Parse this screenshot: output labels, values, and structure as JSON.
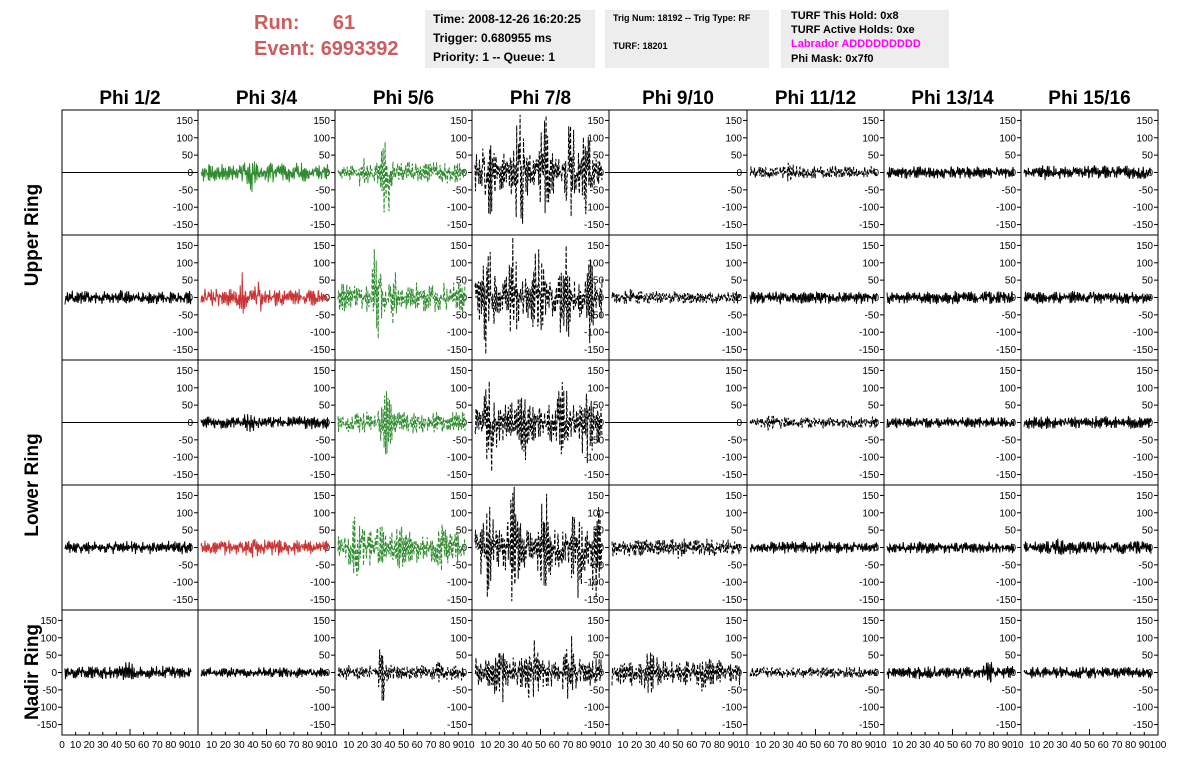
{
  "header": {
    "run_label": "Run:",
    "run_value": "61",
    "event_label": "Event:",
    "event_value": "6993392",
    "time_lines": [
      "Time: 2008-12-26 16:20:25",
      "Trigger: 0.680955 ms",
      "Priority: 1 -- Queue: 1"
    ],
    "trig_lines": [
      "Trig Num: 18192 -- Trig Type: RF",
      "TURF: 18201"
    ],
    "turf_lines": [
      "TURF This Hold: 0x8",
      "TURF Active Holds: 0xe",
      "Labrador ADDDDDDDDD",
      "Phi Mask: 0x7f0"
    ]
  },
  "colors": {
    "title": "#cd5c5c",
    "magenta": "#ff00ff",
    "green": "#2e8b2e",
    "red": "#cc3333",
    "black": "#000000",
    "box": "#ededed"
  },
  "chart_data": {
    "type": "line",
    "columns": [
      "Phi 1/2",
      "Phi 3/4",
      "Phi 5/6",
      "Phi 7/8",
      "Phi 9/10",
      "Phi 11/12",
      "Phi 13/14",
      "Phi 15/16"
    ],
    "rings": [
      "Upper Ring",
      "Lower Ring",
      "Nadir Ring"
    ],
    "ylim": [
      -180,
      180
    ],
    "xlim": [
      0,
      100
    ],
    "y_ticks": [
      -150,
      -100,
      -50,
      0,
      50,
      100,
      150
    ],
    "y_tick_labels": [
      "-150",
      "-100",
      "-50",
      "0",
      "50",
      "100",
      "150"
    ],
    "x_tick_labels": [
      [
        "0",
        "10",
        "20",
        "30",
        "40",
        "50",
        "60",
        "70",
        "80",
        "90",
        "10"
      ],
      [
        "10",
        "20",
        "30",
        "40",
        "50",
        "60",
        "70",
        "80",
        "90",
        "10"
      ],
      [
        "10",
        "20",
        "30",
        "40",
        "50",
        "60",
        "70",
        "80",
        "90",
        "10"
      ],
      [
        "10",
        "20",
        "30",
        "40",
        "50",
        "60",
        "70",
        "80",
        "90",
        "10"
      ],
      [
        "10",
        "20",
        "30",
        "40",
        "50",
        "60",
        "70",
        "80",
        "90",
        "10"
      ],
      [
        "10",
        "20",
        "30",
        "40",
        "50",
        "60",
        "70",
        "80",
        "90",
        "10"
      ],
      [
        "10",
        "20",
        "30",
        "40",
        "50",
        "60",
        "70",
        "80",
        "90",
        "10"
      ],
      [
        "10",
        "20",
        "30",
        "40",
        "50",
        "60",
        "70",
        "80",
        "90",
        "100"
      ]
    ],
    "panels": [
      {
        "row": 0,
        "col": 0,
        "style": "flat",
        "color": "black",
        "amp": 0,
        "peaks": []
      },
      {
        "row": 0,
        "col": 1,
        "style": "solid",
        "color": "green",
        "amp": 22,
        "peaks": [
          [
            40,
            2
          ]
        ]
      },
      {
        "row": 0,
        "col": 2,
        "style": "dash",
        "color": "green",
        "amp": 25,
        "peaks": [
          [
            38,
            5
          ],
          [
            20,
            1.6
          ]
        ]
      },
      {
        "row": 0,
        "col": 3,
        "style": "dash",
        "color": "black",
        "amp": 45,
        "peaks": [
          [
            10,
            3
          ],
          [
            35,
            3.3
          ],
          [
            55,
            3
          ],
          [
            75,
            3
          ],
          [
            88,
            2.5
          ]
        ]
      },
      {
        "row": 0,
        "col": 4,
        "style": "flat",
        "color": "black",
        "amp": 0,
        "peaks": []
      },
      {
        "row": 0,
        "col": 5,
        "style": "dash",
        "color": "black",
        "amp": 15,
        "peaks": [
          [
            30,
            1.6
          ],
          [
            70,
            1.4
          ]
        ]
      },
      {
        "row": 0,
        "col": 6,
        "style": "solid",
        "color": "black",
        "amp": 14,
        "peaks": []
      },
      {
        "row": 0,
        "col": 7,
        "style": "solid",
        "color": "black",
        "amp": 16,
        "peaks": [
          [
            20,
            1.5
          ]
        ]
      },
      {
        "row": 1,
        "col": 0,
        "style": "solid",
        "color": "black",
        "amp": 17,
        "peaks": []
      },
      {
        "row": 1,
        "col": 1,
        "style": "solid",
        "color": "red",
        "amp": 20,
        "peaks": [
          [
            32,
            3
          ],
          [
            45,
            2
          ]
        ]
      },
      {
        "row": 1,
        "col": 2,
        "style": "dash",
        "color": "green",
        "amp": 35,
        "peaks": [
          [
            30,
            4
          ],
          [
            45,
            2
          ]
        ]
      },
      {
        "row": 1,
        "col": 3,
        "style": "dash",
        "color": "black",
        "amp": 50,
        "peaks": [
          [
            10,
            3
          ],
          [
            30,
            2.8
          ],
          [
            50,
            2.6
          ],
          [
            70,
            2.8
          ],
          [
            90,
            2.4
          ]
        ]
      },
      {
        "row": 1,
        "col": 4,
        "style": "dash",
        "color": "black",
        "amp": 15,
        "peaks": [
          [
            15,
            1.5
          ]
        ]
      },
      {
        "row": 1,
        "col": 5,
        "style": "solid",
        "color": "black",
        "amp": 15,
        "peaks": []
      },
      {
        "row": 1,
        "col": 6,
        "style": "solid",
        "color": "black",
        "amp": 15,
        "peaks": []
      },
      {
        "row": 1,
        "col": 7,
        "style": "solid",
        "color": "black",
        "amp": 15,
        "peaks": []
      },
      {
        "row": 2,
        "col": 0,
        "style": "flat",
        "color": "black",
        "amp": 0,
        "peaks": []
      },
      {
        "row": 2,
        "col": 1,
        "style": "solid",
        "color": "black",
        "amp": 15,
        "peaks": [
          [
            38,
            1.6
          ]
        ]
      },
      {
        "row": 2,
        "col": 2,
        "style": "dash",
        "color": "green",
        "amp": 25,
        "peaks": [
          [
            38,
            3.5
          ]
        ]
      },
      {
        "row": 2,
        "col": 3,
        "style": "dash",
        "color": "black",
        "amp": 45,
        "peaks": [
          [
            12,
            2.8
          ],
          [
            38,
            2.2
          ],
          [
            70,
            2.6
          ],
          [
            88,
            2.4
          ]
        ]
      },
      {
        "row": 2,
        "col": 4,
        "style": "flat",
        "color": "black",
        "amp": 0,
        "peaks": []
      },
      {
        "row": 2,
        "col": 5,
        "style": "dash",
        "color": "black",
        "amp": 14,
        "peaks": [
          [
            15,
            1.5
          ]
        ]
      },
      {
        "row": 2,
        "col": 6,
        "style": "solid",
        "color": "black",
        "amp": 13,
        "peaks": []
      },
      {
        "row": 2,
        "col": 7,
        "style": "solid",
        "color": "black",
        "amp": 15,
        "peaks": []
      },
      {
        "row": 3,
        "col": 0,
        "style": "solid",
        "color": "black",
        "amp": 15,
        "peaks": []
      },
      {
        "row": 3,
        "col": 1,
        "style": "solid",
        "color": "red",
        "amp": 18,
        "peaks": [
          [
            40,
            1.8
          ]
        ]
      },
      {
        "row": 3,
        "col": 2,
        "style": "dash",
        "color": "green",
        "amp": 35,
        "peaks": [
          [
            15,
            3
          ],
          [
            30,
            3.3
          ],
          [
            50,
            2
          ],
          [
            80,
            2
          ]
        ]
      },
      {
        "row": 3,
        "col": 3,
        "style": "dash",
        "color": "black",
        "amp": 50,
        "peaks": [
          [
            10,
            2.6
          ],
          [
            30,
            3
          ],
          [
            55,
            2.6
          ],
          [
            80,
            3
          ],
          [
            95,
            2.6
          ]
        ]
      },
      {
        "row": 3,
        "col": 4,
        "style": "dash",
        "color": "black",
        "amp": 20,
        "peaks": [
          [
            50,
            1.5
          ]
        ]
      },
      {
        "row": 3,
        "col": 5,
        "style": "solid",
        "color": "black",
        "amp": 14,
        "peaks": []
      },
      {
        "row": 3,
        "col": 6,
        "style": "solid",
        "color": "black",
        "amp": 14,
        "peaks": []
      },
      {
        "row": 3,
        "col": 7,
        "style": "solid",
        "color": "black",
        "amp": 16,
        "peaks": [
          [
            30,
            1.5
          ]
        ]
      },
      {
        "row": 4,
        "col": 0,
        "style": "solid",
        "color": "black",
        "amp": 15,
        "peaks": [
          [
            50,
            1.8
          ]
        ]
      },
      {
        "row": 4,
        "col": 1,
        "style": "solid",
        "color": "black",
        "amp": 12,
        "peaks": []
      },
      {
        "row": 4,
        "col": 2,
        "style": "dash",
        "color": "black",
        "amp": 18,
        "peaks": [
          [
            35,
            4
          ],
          [
            80,
            1.5
          ]
        ]
      },
      {
        "row": 4,
        "col": 3,
        "style": "dash",
        "color": "black",
        "amp": 35,
        "peaks": [
          [
            20,
            2.5
          ],
          [
            45,
            2.8
          ],
          [
            75,
            2.5
          ]
        ]
      },
      {
        "row": 4,
        "col": 4,
        "style": "dash",
        "color": "black",
        "amp": 30,
        "peaks": [
          [
            30,
            2
          ],
          [
            70,
            1.5
          ]
        ]
      },
      {
        "row": 4,
        "col": 5,
        "style": "dash",
        "color": "black",
        "amp": 13,
        "peaks": []
      },
      {
        "row": 4,
        "col": 6,
        "style": "solid",
        "color": "black",
        "amp": 15,
        "peaks": [
          [
            80,
            2
          ]
        ]
      },
      {
        "row": 4,
        "col": 7,
        "style": "solid",
        "color": "black",
        "amp": 14,
        "peaks": []
      }
    ]
  }
}
